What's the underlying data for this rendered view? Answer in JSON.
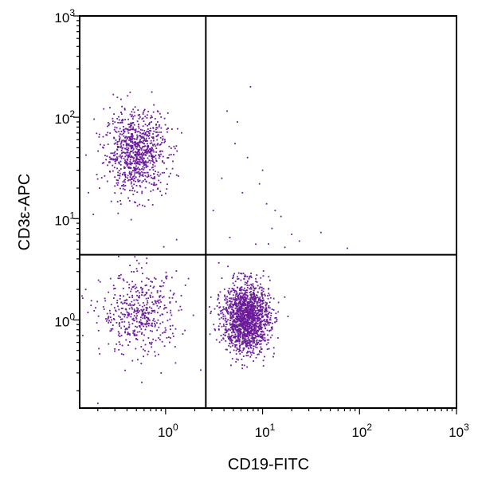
{
  "chart_data": {
    "type": "scatter",
    "xlabel": "CD19-FITC",
    "ylabel": "CD3ε-APC",
    "x_scale": "log",
    "y_scale": "log",
    "xlim": [
      0.13,
      1000
    ],
    "ylim": [
      0.135,
      1000
    ],
    "x_ticks": [
      {
        "value": 1,
        "base": "10",
        "exp": "0"
      },
      {
        "value": 10,
        "base": "10",
        "exp": "1"
      },
      {
        "value": 100,
        "base": "10",
        "exp": "2"
      },
      {
        "value": 1000,
        "base": "10",
        "exp": "3"
      }
    ],
    "y_ticks": [
      {
        "value": 1,
        "base": "10",
        "exp": "0"
      },
      {
        "value": 10,
        "base": "10",
        "exp": "1"
      },
      {
        "value": 100,
        "base": "10",
        "exp": "2"
      },
      {
        "value": 1000,
        "base": "10",
        "exp": "3"
      }
    ],
    "quadrant_gates": {
      "x": 2.6,
      "y": 4.4
    },
    "point_color": "#6a1b9a",
    "populations": [
      {
        "center": {
          "x": 0.5,
          "y": 45
        },
        "spread_log10": {
          "x": 0.16,
          "y": 0.2
        },
        "count": 900
      },
      {
        "center": {
          "x": 0.55,
          "y": 1.15
        },
        "spread_log10": {
          "x": 0.2,
          "y": 0.2
        },
        "count": 480
      },
      {
        "center": {
          "x": 6.8,
          "y": 1.05
        },
        "spread_log10": {
          "x": 0.12,
          "y": 0.17
        },
        "count": 1600
      }
    ],
    "sparse_points": [
      {
        "x": 7.5,
        "y": 200
      },
      {
        "x": 4.3,
        "y": 115
      },
      {
        "x": 5.2,
        "y": 55
      },
      {
        "x": 7.0,
        "y": 40
      },
      {
        "x": 10.0,
        "y": 30
      },
      {
        "x": 9.3,
        "y": 22
      },
      {
        "x": 6.2,
        "y": 18
      },
      {
        "x": 11.0,
        "y": 14
      },
      {
        "x": 13.5,
        "y": 12
      },
      {
        "x": 15.5,
        "y": 10.5
      },
      {
        "x": 12.5,
        "y": 8
      },
      {
        "x": 20,
        "y": 7
      },
      {
        "x": 24,
        "y": 6
      },
      {
        "x": 40,
        "y": 7.3
      },
      {
        "x": 75,
        "y": 5.1
      },
      {
        "x": 3.1,
        "y": 12
      },
      {
        "x": 3.8,
        "y": 25
      },
      {
        "x": 4.6,
        "y": 6.5
      },
      {
        "x": 8.5,
        "y": 5.6
      },
      {
        "x": 17,
        "y": 5.2
      },
      {
        "x": 5.5,
        "y": 90
      },
      {
        "x": 1.3,
        "y": 6.2
      },
      {
        "x": 0.18,
        "y": 11
      },
      {
        "x": 0.16,
        "y": 18
      },
      {
        "x": 1.6,
        "y": 2.2
      },
      {
        "x": 0.2,
        "y": 0.15
      },
      {
        "x": 0.9,
        "y": 0.3
      },
      {
        "x": 2.3,
        "y": 0.32
      },
      {
        "x": 0.14,
        "y": 0.7
      },
      {
        "x": 0.15,
        "y": 2.0
      }
    ]
  }
}
